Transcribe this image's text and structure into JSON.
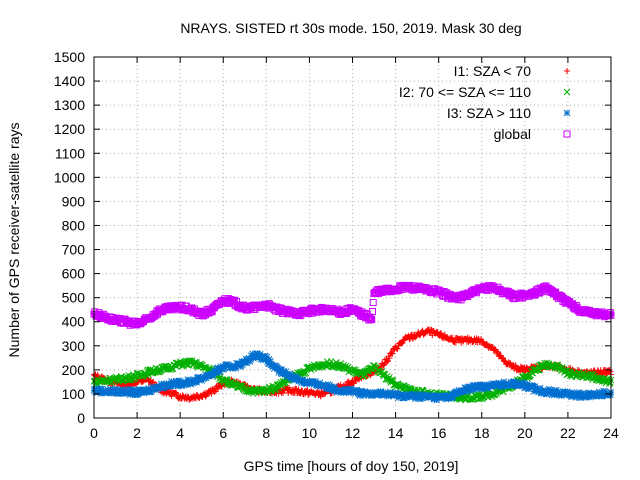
{
  "chart_data": {
    "type": "scatter",
    "title": "NRAYS. SISTED rt 30s mode. 150, 2019. Mask 30 deg",
    "xlabel": "GPS time [hours of doy 150, 2019]",
    "ylabel": "Number of GPS receiver-satellite rays",
    "xlim": [
      0,
      24
    ],
    "ylim": [
      0,
      1500
    ],
    "xticks": [
      0,
      2,
      4,
      6,
      8,
      10,
      12,
      14,
      16,
      18,
      20,
      22,
      24
    ],
    "yticks": [
      0,
      100,
      200,
      300,
      400,
      500,
      600,
      700,
      800,
      900,
      1000,
      1100,
      1200,
      1300,
      1400,
      1500
    ],
    "grid": true,
    "legend_position": "top-right",
    "series": [
      {
        "name": "I1: SZA < 70",
        "color": "#ff0000",
        "marker": "+",
        "x": [
          0,
          0.5,
          1,
          1.5,
          2,
          2.5,
          3,
          3.5,
          4,
          4.5,
          5,
          5.5,
          6,
          6.5,
          7,
          7.5,
          8,
          8.5,
          9,
          9.5,
          10,
          10.5,
          11,
          11.5,
          12,
          12.5,
          13,
          13.5,
          14,
          14.5,
          15,
          15.5,
          16,
          16.5,
          17,
          17.5,
          18,
          18.5,
          19,
          19.5,
          20,
          20.5,
          21,
          21.5,
          22,
          22.5,
          23,
          23.5,
          24
        ],
        "y": [
          175,
          160,
          145,
          140,
          150,
          160,
          120,
          105,
          90,
          85,
          95,
          110,
          145,
          150,
          130,
          115,
          110,
          112,
          115,
          110,
          105,
          100,
          110,
          130,
          150,
          180,
          190,
          230,
          290,
          330,
          345,
          360,
          345,
          330,
          320,
          325,
          320,
          290,
          240,
          210,
          200,
          210,
          215,
          210,
          200,
          190,
          185,
          190,
          190
        ]
      },
      {
        "name": "I2: 70 <= SZA <= 110",
        "color": "#00b000",
        "marker": "x",
        "x": [
          0,
          0.5,
          1,
          1.5,
          2,
          2.5,
          3,
          3.5,
          4,
          4.5,
          5,
          5.5,
          6,
          6.5,
          7,
          7.5,
          8,
          8.5,
          9,
          9.5,
          10,
          10.5,
          11,
          11.5,
          12,
          12.5,
          13,
          13.5,
          14,
          14.5,
          15,
          15.5,
          16,
          16.5,
          17,
          17.5,
          18,
          18.5,
          19,
          19.5,
          20,
          20.5,
          21,
          21.5,
          22,
          22.5,
          23,
          23.5,
          24
        ],
        "y": [
          150,
          155,
          160,
          165,
          175,
          190,
          200,
          210,
          225,
          230,
          215,
          195,
          160,
          135,
          120,
          110,
          115,
          130,
          160,
          180,
          205,
          220,
          225,
          215,
          195,
          180,
          210,
          175,
          140,
          120,
          110,
          100,
          95,
          90,
          85,
          85,
          90,
          100,
          120,
          140,
          170,
          200,
          225,
          215,
          185,
          180,
          175,
          160,
          150
        ]
      },
      {
        "name": "I3: SZA > 110",
        "color": "#0070d0",
        "marker": "*",
        "x": [
          0,
          0.5,
          1,
          1.5,
          2,
          2.5,
          3,
          3.5,
          4,
          4.5,
          5,
          5.5,
          6,
          6.5,
          7,
          7.5,
          8,
          8.5,
          9,
          9.5,
          10,
          10.5,
          11,
          11.5,
          12,
          12.5,
          13,
          13.5,
          14,
          14.5,
          15,
          15.5,
          16,
          16.5,
          17,
          17.5,
          18,
          18.5,
          19,
          19.5,
          20,
          20.5,
          21,
          21.5,
          22,
          22.5,
          23,
          23.5,
          24
        ],
        "y": [
          115,
          112,
          110,
          110,
          105,
          115,
          130,
          140,
          145,
          150,
          165,
          185,
          210,
          215,
          230,
          265,
          245,
          200,
          180,
          160,
          145,
          140,
          125,
          115,
          110,
          100,
          105,
          100,
          95,
          92,
          90,
          88,
          85,
          88,
          110,
          125,
          130,
          135,
          140,
          145,
          135,
          120,
          110,
          105,
          100,
          95,
          95,
          100,
          105
        ]
      },
      {
        "name": "global",
        "color": "#cc00ff",
        "marker": "square",
        "x": [
          0,
          0.5,
          1,
          1.5,
          2,
          2.5,
          3,
          3.5,
          4,
          4.5,
          5,
          5.5,
          6,
          6.5,
          7,
          7.5,
          8,
          8.5,
          9,
          9.5,
          10,
          10.5,
          11,
          11.5,
          12,
          12.5,
          12.9,
          13,
          13.5,
          14,
          14.5,
          15,
          15.5,
          16,
          16.5,
          17,
          17.5,
          18,
          18.5,
          19,
          19.5,
          20,
          20.5,
          21,
          21.5,
          22,
          22.5,
          23,
          23.5,
          24
        ],
        "y": [
          435,
          420,
          405,
          400,
          390,
          410,
          445,
          455,
          460,
          450,
          430,
          450,
          490,
          480,
          455,
          460,
          470,
          450,
          440,
          435,
          445,
          450,
          445,
          440,
          450,
          430,
          410,
          520,
          530,
          535,
          545,
          540,
          530,
          525,
          505,
          500,
          520,
          535,
          545,
          525,
          505,
          510,
          520,
          545,
          510,
          480,
          450,
          440,
          430,
          430
        ]
      }
    ]
  }
}
